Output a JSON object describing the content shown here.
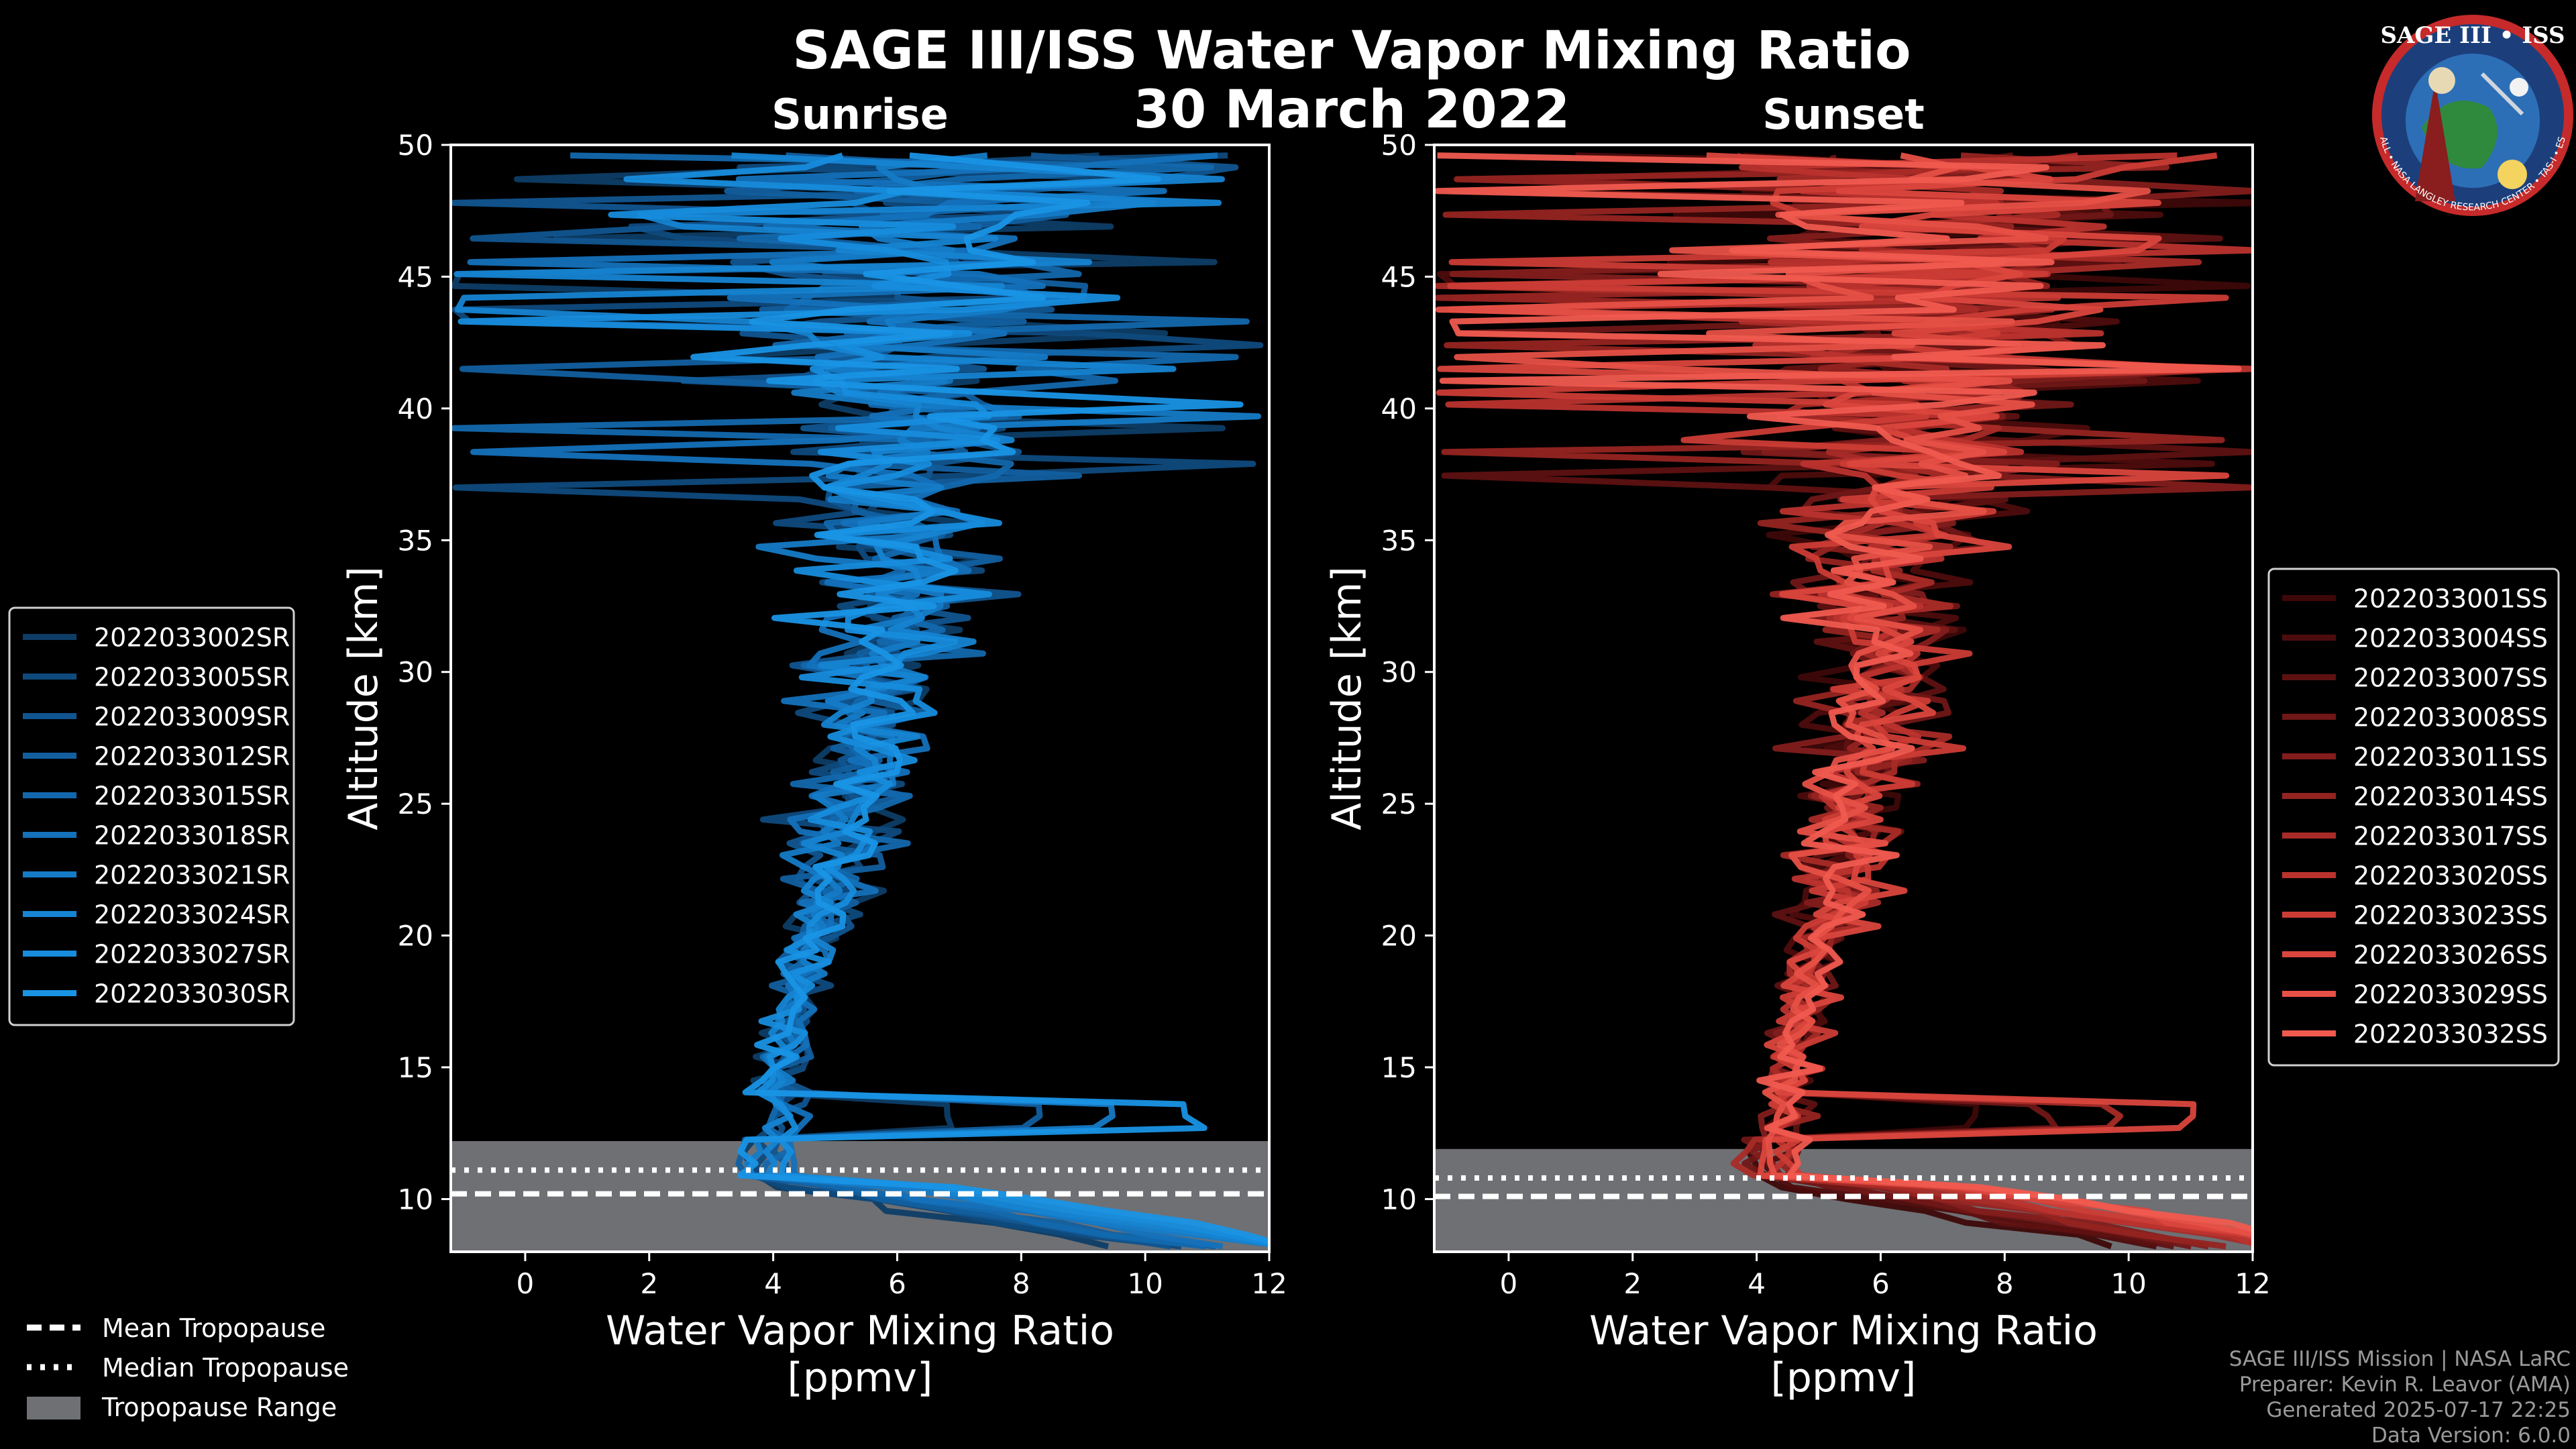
{
  "chart_data": {
    "title": "SAGE III/ISS Water Vapor Mixing Ratio",
    "subtitle": "30 March 2022",
    "panels": [
      {
        "type": "line",
        "name": "Sunrise",
        "xlabel_line1": "Water Vapor Mixing Ratio",
        "xlabel_line2": "[ppmv]",
        "ylabel": "Altitude [km]",
        "xlim": [
          -1.2,
          12
        ],
        "ylim": [
          8,
          50
        ],
        "xticks": [
          0,
          2,
          4,
          6,
          8,
          10,
          12
        ],
        "yticks": [
          10,
          15,
          20,
          25,
          30,
          35,
          40,
          45,
          50
        ],
        "tropopause": {
          "mean": 10.2,
          "median": 11.1,
          "min": 8,
          "max": 12.2
        },
        "series": [
          {
            "name": "2022033002SR",
            "color": "#0d3d66"
          },
          {
            "name": "2022033005SR",
            "color": "#0f4a7d"
          },
          {
            "name": "2022033009SR",
            "color": "#115590"
          },
          {
            "name": "2022033012SR",
            "color": "#125f9f"
          },
          {
            "name": "2022033015SR",
            "color": "#1368ad"
          },
          {
            "name": "2022033018SR",
            "color": "#1471ba"
          },
          {
            "name": "2022033021SR",
            "color": "#157bc7"
          },
          {
            "name": "2022033024SR",
            "color": "#1684d2"
          },
          {
            "name": "2022033027SR",
            "color": "#178cdc"
          },
          {
            "name": "2022033030SR",
            "color": "#1994e5"
          }
        ]
      },
      {
        "type": "line",
        "name": "Sunset",
        "xlabel_line1": "Water Vapor Mixing Ratio",
        "xlabel_line2": "[ppmv]",
        "ylabel": "Altitude [km]",
        "xlim": [
          -1.2,
          12
        ],
        "ylim": [
          8,
          50
        ],
        "xticks": [
          0,
          2,
          4,
          6,
          8,
          10,
          12
        ],
        "yticks": [
          10,
          15,
          20,
          25,
          30,
          35,
          40,
          45,
          50
        ],
        "tropopause": {
          "mean": 10.1,
          "median": 10.8,
          "min": 8,
          "max": 11.9
        },
        "series": [
          {
            "name": "2022033001SS",
            "color": "#3d0808"
          },
          {
            "name": "2022033004SS",
            "color": "#4d0c0c"
          },
          {
            "name": "2022033007SS",
            "color": "#5e1111"
          },
          {
            "name": "2022033008SS",
            "color": "#701717"
          },
          {
            "name": "2022033011SS",
            "color": "#821d1c"
          },
          {
            "name": "2022033014SS",
            "color": "#952421"
          },
          {
            "name": "2022033017SS",
            "color": "#a82b27"
          },
          {
            "name": "2022033020SS",
            "color": "#ba332e"
          },
          {
            "name": "2022033023SS",
            "color": "#cb3c35"
          },
          {
            "name": "2022033026SS",
            "color": "#da463d"
          },
          {
            "name": "2022033029SS",
            "color": "#e65046"
          },
          {
            "name": "2022033032SS",
            "color": "#f05a4f"
          }
        ]
      }
    ],
    "common_legend": [
      "Mean Tropopause",
      "Median Tropopause",
      "Tropopause Range"
    ]
  },
  "logo": {
    "text": "SAGE III • ISS",
    "ring_text": "BALL • NASA LANGLEY RESEARCH CENTER • TAS-I • ESA"
  },
  "credits": [
    "SAGE III/ISS Mission | NASA LaRC",
    "Preparer: Kevin R. Leavor (AMA)",
    "Generated 2025-07-17 22:25",
    "Data Version: 6.0.0"
  ],
  "colors": {
    "background": "#000000",
    "range": "#6e7074",
    "sunrise": "#1994e5",
    "sunset": "#f05a4f"
  }
}
